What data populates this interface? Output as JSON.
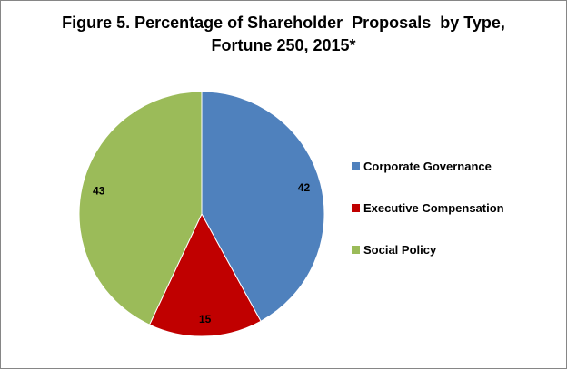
{
  "chart_data": {
    "type": "pie",
    "title": [
      "Figure 5. Percentage of Shareholder  Proposals  by Type,",
      "Fortune 250, 2015*"
    ],
    "start": "top",
    "direction": "clockwise",
    "legend_position": "right",
    "slices": [
      {
        "label": "Corporate Governance",
        "value": 42,
        "display": "42",
        "color": "#4F81BD"
      },
      {
        "label": "Executive Compensation",
        "value": 15,
        "display": "15",
        "color": "#C00000"
      },
      {
        "label": "Social Policy",
        "value": 43,
        "display": "43",
        "color": "#9BBB59"
      }
    ]
  }
}
